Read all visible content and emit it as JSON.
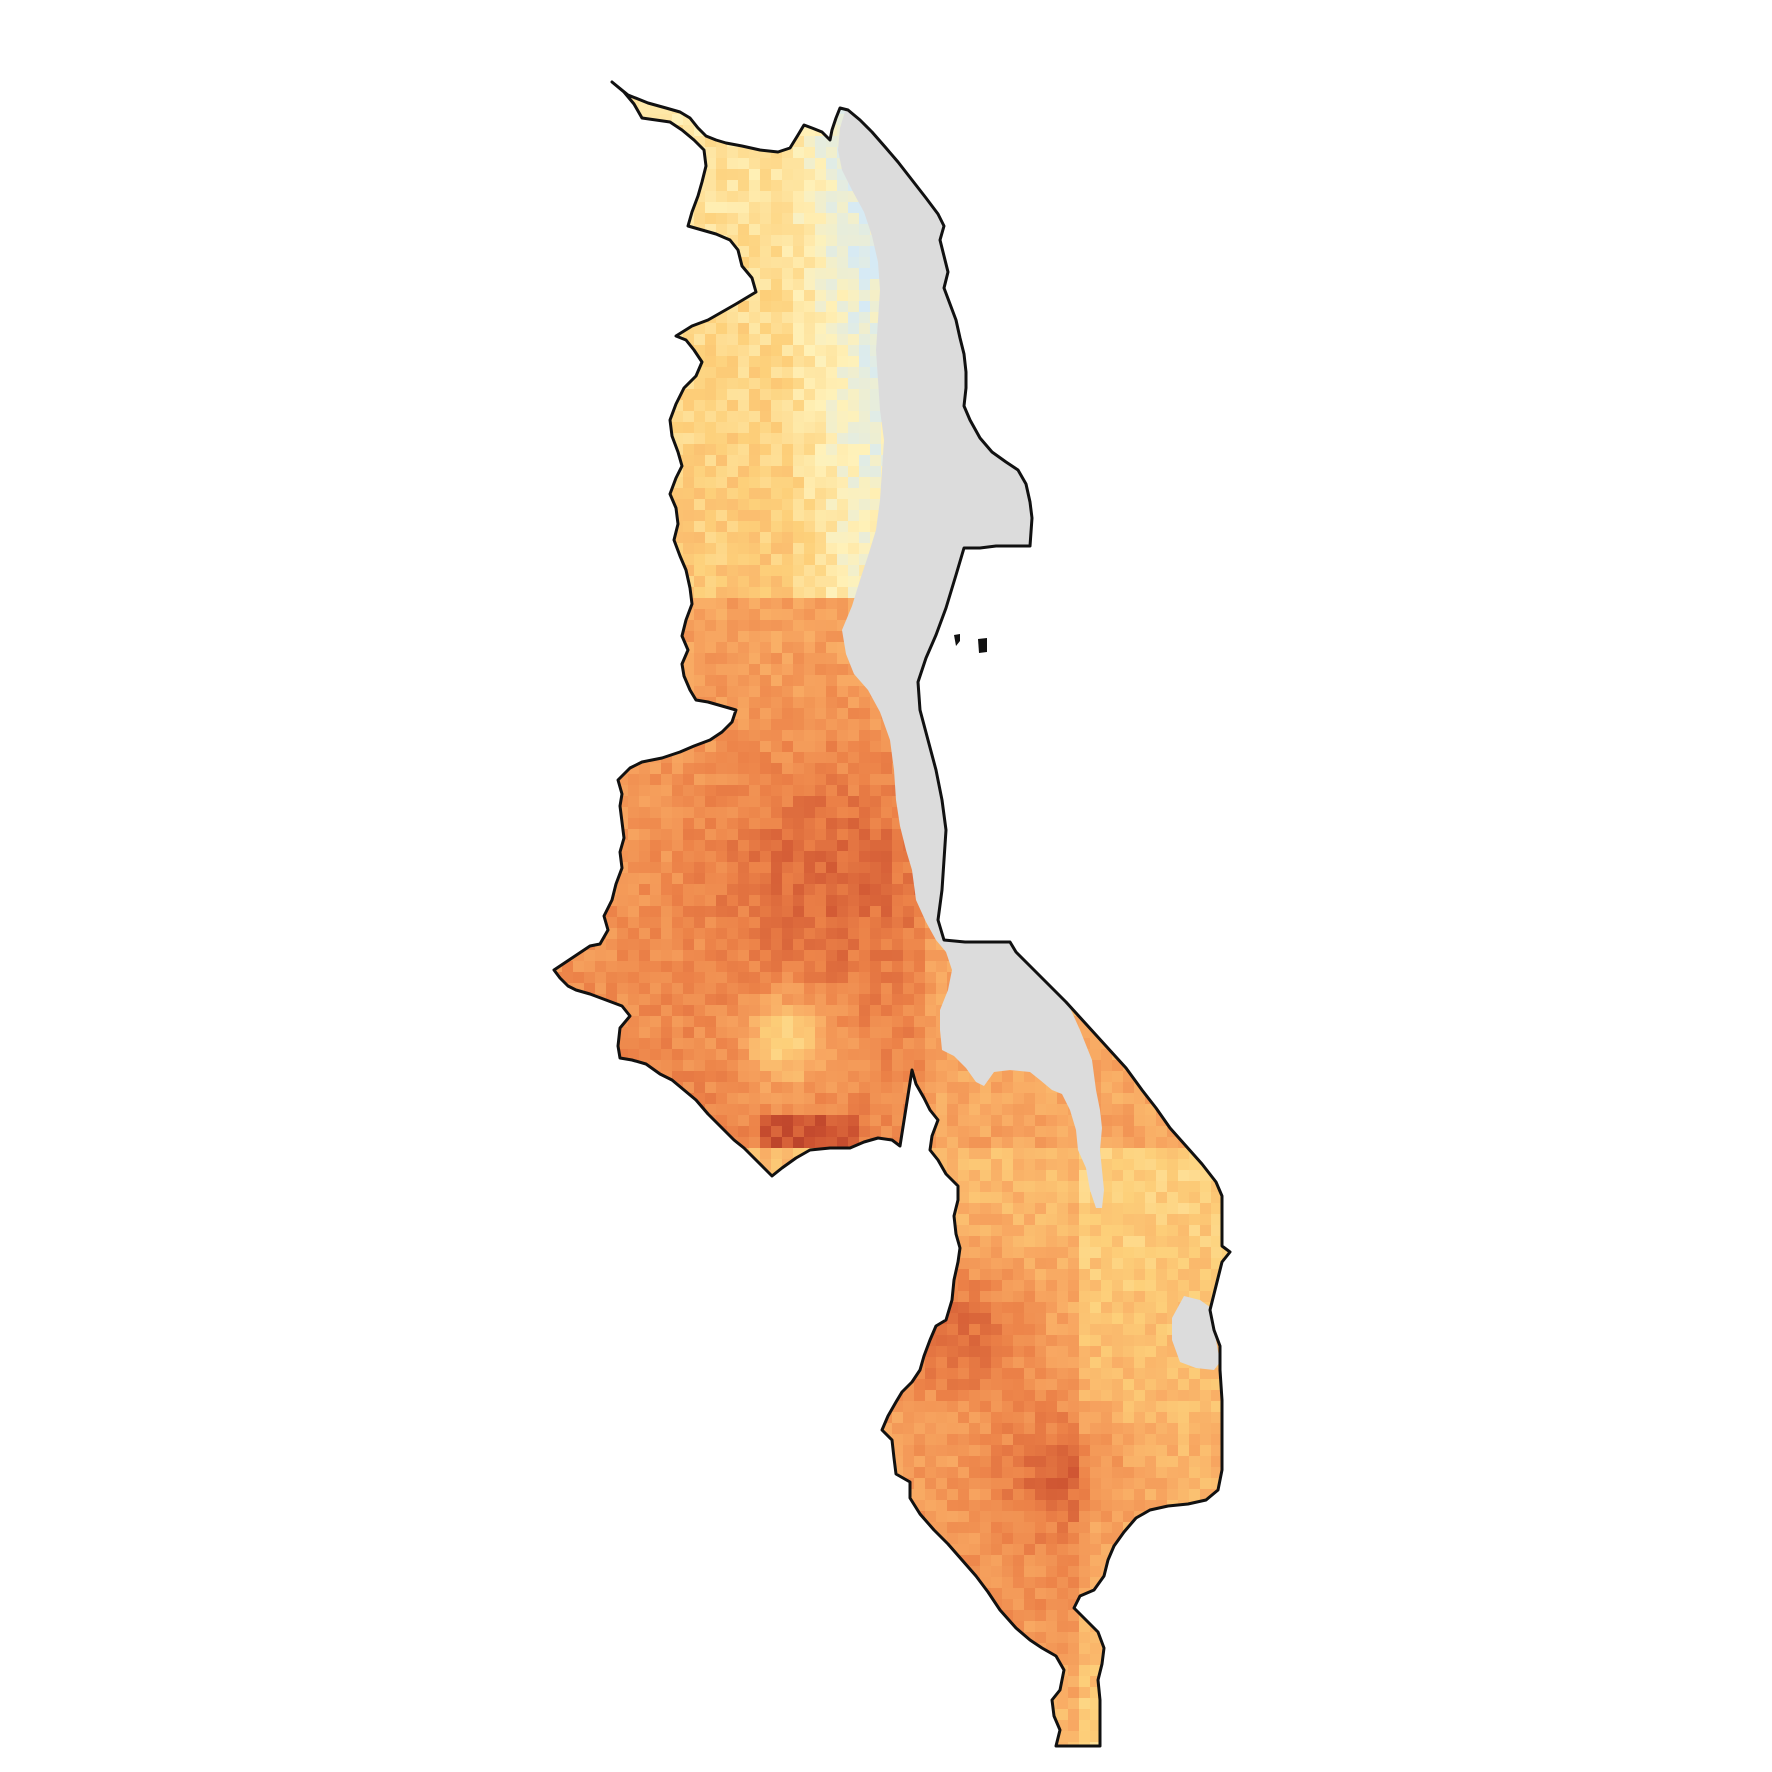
{
  "map": {
    "style": "choropleth-raster",
    "colors": {
      "background": "#ffffff",
      "border": "#111111",
      "water": "#dcdcdc",
      "ramp": [
        "#d6eaf5",
        "#fff1b8",
        "#fdd07a",
        "#f8a862",
        "#ec8248",
        "#cf5532",
        "#a52e22"
      ]
    },
    "legend": "none",
    "title": ""
  }
}
